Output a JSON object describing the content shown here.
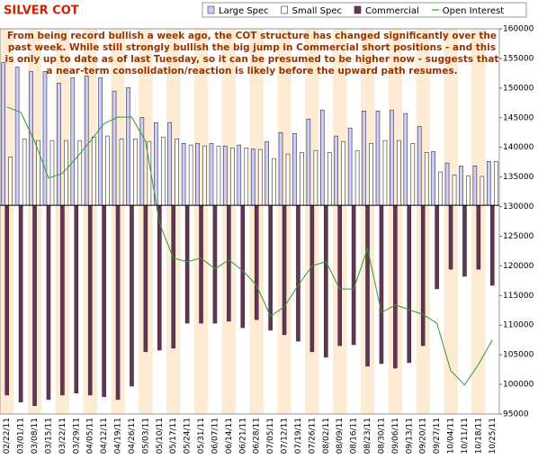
{
  "chart_data": {
    "type": "bar",
    "title": "SILVER COT",
    "annotation": [
      "From being record bullish a week ago, the COT structure has changed significantly over the",
      "past week. While still strongly bullish the big jump in Commercial short positions - and this",
      "is only up to date as of last Tuesday, so it can be presumed to be higher now - suggests that",
      "a near-term consolidation/reaction is likely before the upward path resumes."
    ],
    "categories": [
      "02/22/11",
      "03/01/11",
      "03/08/11",
      "03/15/11",
      "03/22/11",
      "03/29/11",
      "04/05/11",
      "04/12/11",
      "04/19/11",
      "04/26/11",
      "05/03/11",
      "05/10/11",
      "05/17/11",
      "05/24/11",
      "05/31/11",
      "06/07/11",
      "06/14/11",
      "06/21/11",
      "06/28/11",
      "07/05/11",
      "07/12/11",
      "07/19/11",
      "07/26/11",
      "08/02/11",
      "08/09/11",
      "08/16/11",
      "08/23/11",
      "08/30/11",
      "09/06/11",
      "09/13/11",
      "09/20/11",
      "09/27/11",
      "10/04/11",
      "10/11/11",
      "10/18/11",
      "10/25/11"
    ],
    "series": [
      {
        "name": "Large Spec",
        "color": "#ccccff",
        "values": [
          44500,
          43100,
          41700,
          41700,
          38100,
          39800,
          40300,
          39800,
          35600,
          36700,
          27400,
          25800,
          25800,
          19300,
          19300,
          19300,
          18500,
          18800,
          17600,
          19900,
          22700,
          22400,
          26900,
          29700,
          21600,
          24100,
          29400,
          29400,
          29700,
          28600,
          24600,
          16800,
          13200,
          12300,
          12300,
          13700
        ]
      },
      {
        "name": "Small Spec",
        "color": "#ffffff",
        "values": [
          15100,
          20700,
          20200,
          20200,
          20200,
          20200,
          21300,
          21600,
          20700,
          20700,
          19900,
          21300,
          20700,
          18800,
          18500,
          18500,
          17900,
          17900,
          17400,
          14600,
          16000,
          16500,
          17100,
          16500,
          19900,
          17100,
          19300,
          20200,
          20200,
          19300,
          16500,
          10400,
          9500,
          9200,
          9000,
          13700
        ]
      },
      {
        "name": "Commercial",
        "color": "#663355",
        "values": [
          -59100,
          -61300,
          -62400,
          -60500,
          -59100,
          -58500,
          -59100,
          -59600,
          -60500,
          -56300,
          -45600,
          -45100,
          -44500,
          -36700,
          -36700,
          -36700,
          -36100,
          -38100,
          -35600,
          -38900,
          -40300,
          -42300,
          -45600,
          -47300,
          -43700,
          -43400,
          -50100,
          -49300,
          -50700,
          -49000,
          -43700,
          -26000,
          -19900,
          -22100,
          -19900,
          -24900
        ]
      },
      {
        "name": "Open Interest",
        "color": "#339933",
        "axis": "y2",
        "values": [
          146800,
          145900,
          141000,
          134800,
          135600,
          138200,
          141000,
          144000,
          145100,
          145100,
          141000,
          127200,
          121300,
          120700,
          121300,
          119500,
          121000,
          119200,
          116700,
          111500,
          113100,
          116700,
          120000,
          120700,
          116100,
          116100,
          122900,
          112100,
          113400,
          112600,
          111800,
          110300,
          102300,
          99900,
          103400,
          107500
        ]
      }
    ],
    "ylim": [
      -65000,
      55000
    ],
    "y2lim": [
      95000,
      160000
    ],
    "y2ticks": [
      160000,
      155000,
      150000,
      145000,
      140000,
      135000,
      130000,
      125000,
      120000,
      115000,
      110000,
      105000,
      100000,
      95000
    ],
    "legend": "top-right"
  }
}
